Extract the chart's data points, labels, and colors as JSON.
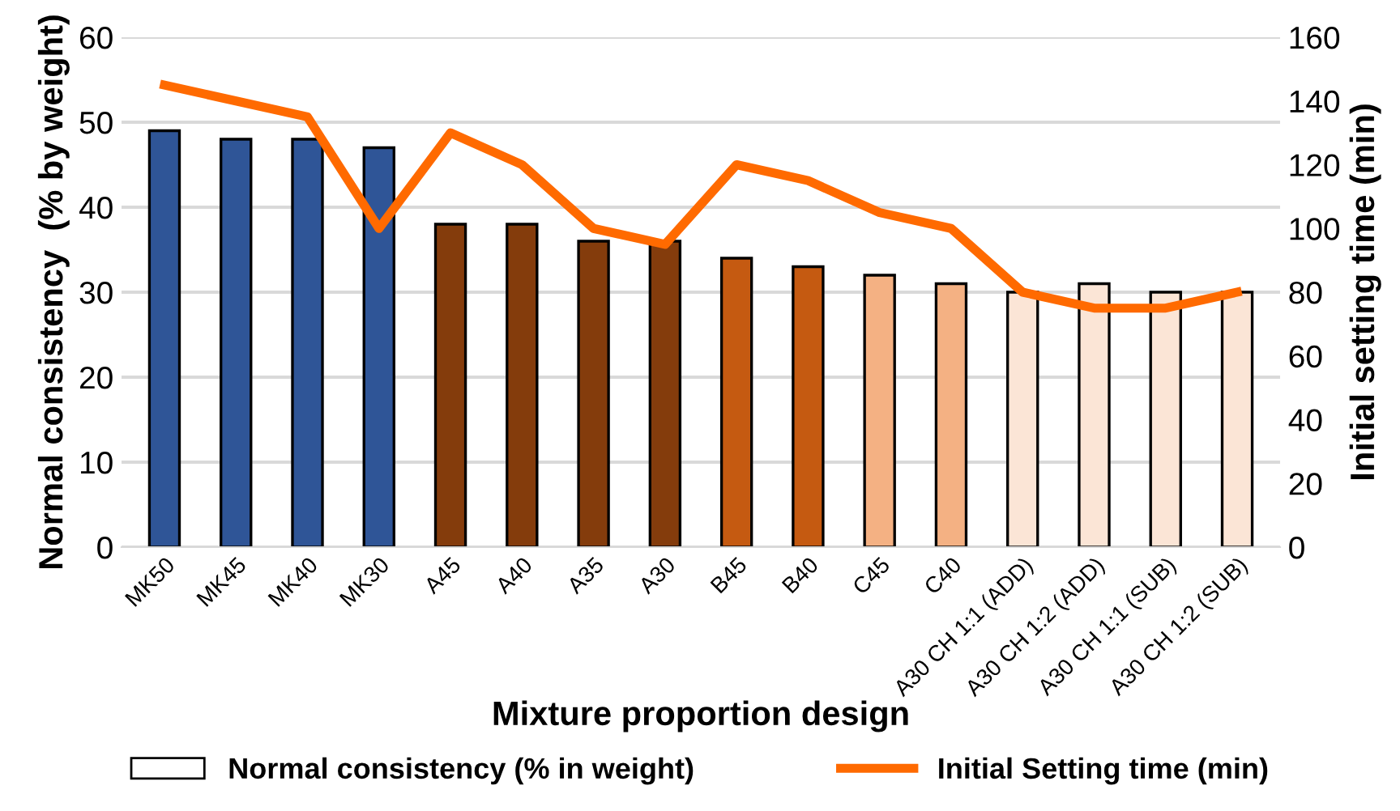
{
  "chart_data": {
    "type": "bar",
    "xlabel": "Mixture proportion design",
    "ylabel": "Normal consistency  (% by weight)",
    "y2label": "Initial setting time (min)",
    "categories": [
      "MK50",
      "MK45",
      "MK40",
      "MK30",
      "A45",
      "A40",
      "A35",
      "A30",
      "B45",
      "B40",
      "C45",
      "C40",
      "A30 CH 1:1 (ADD)",
      "A30 CH 1:2 (ADD)",
      "A30 CH 1:1 (SUB)",
      "A30 CH 1:2 (SUB)"
    ],
    "series": [
      {
        "name": "Normal consistency (% in weight)",
        "color": "#ffffff",
        "colors": [
          "#2f5597",
          "#2f5597",
          "#2f5597",
          "#2f5597",
          "#843c0c",
          "#843c0c",
          "#843c0c",
          "#843c0c",
          "#c55a11",
          "#c55a11",
          "#f4b183",
          "#f4b183",
          "#fbe5d6",
          "#fbe5d6",
          "#fbe5d6",
          "#fbe5d6"
        ],
        "values": [
          49,
          48,
          48,
          47,
          38,
          38,
          36,
          36,
          34,
          33,
          32,
          31,
          30,
          31,
          30,
          30
        ]
      },
      {
        "name": "Initial Setting time (min)",
        "type": "line",
        "axis": "y2",
        "color": "#ff6a00",
        "values": [
          145,
          140,
          135,
          100,
          130,
          120,
          100,
          95,
          120,
          115,
          105,
          100,
          80,
          75,
          75,
          80
        ]
      }
    ],
    "ylim": [
      0,
      60
    ],
    "yticks": [
      0,
      10,
      20,
      30,
      40,
      50,
      60
    ],
    "y2lim": [
      0,
      160
    ],
    "y2ticks": [
      0,
      20,
      40,
      60,
      80,
      100,
      120,
      140,
      160
    ],
    "grid": "y",
    "legend": "bottom",
    "marker": "none",
    "line_style": "solid"
  }
}
